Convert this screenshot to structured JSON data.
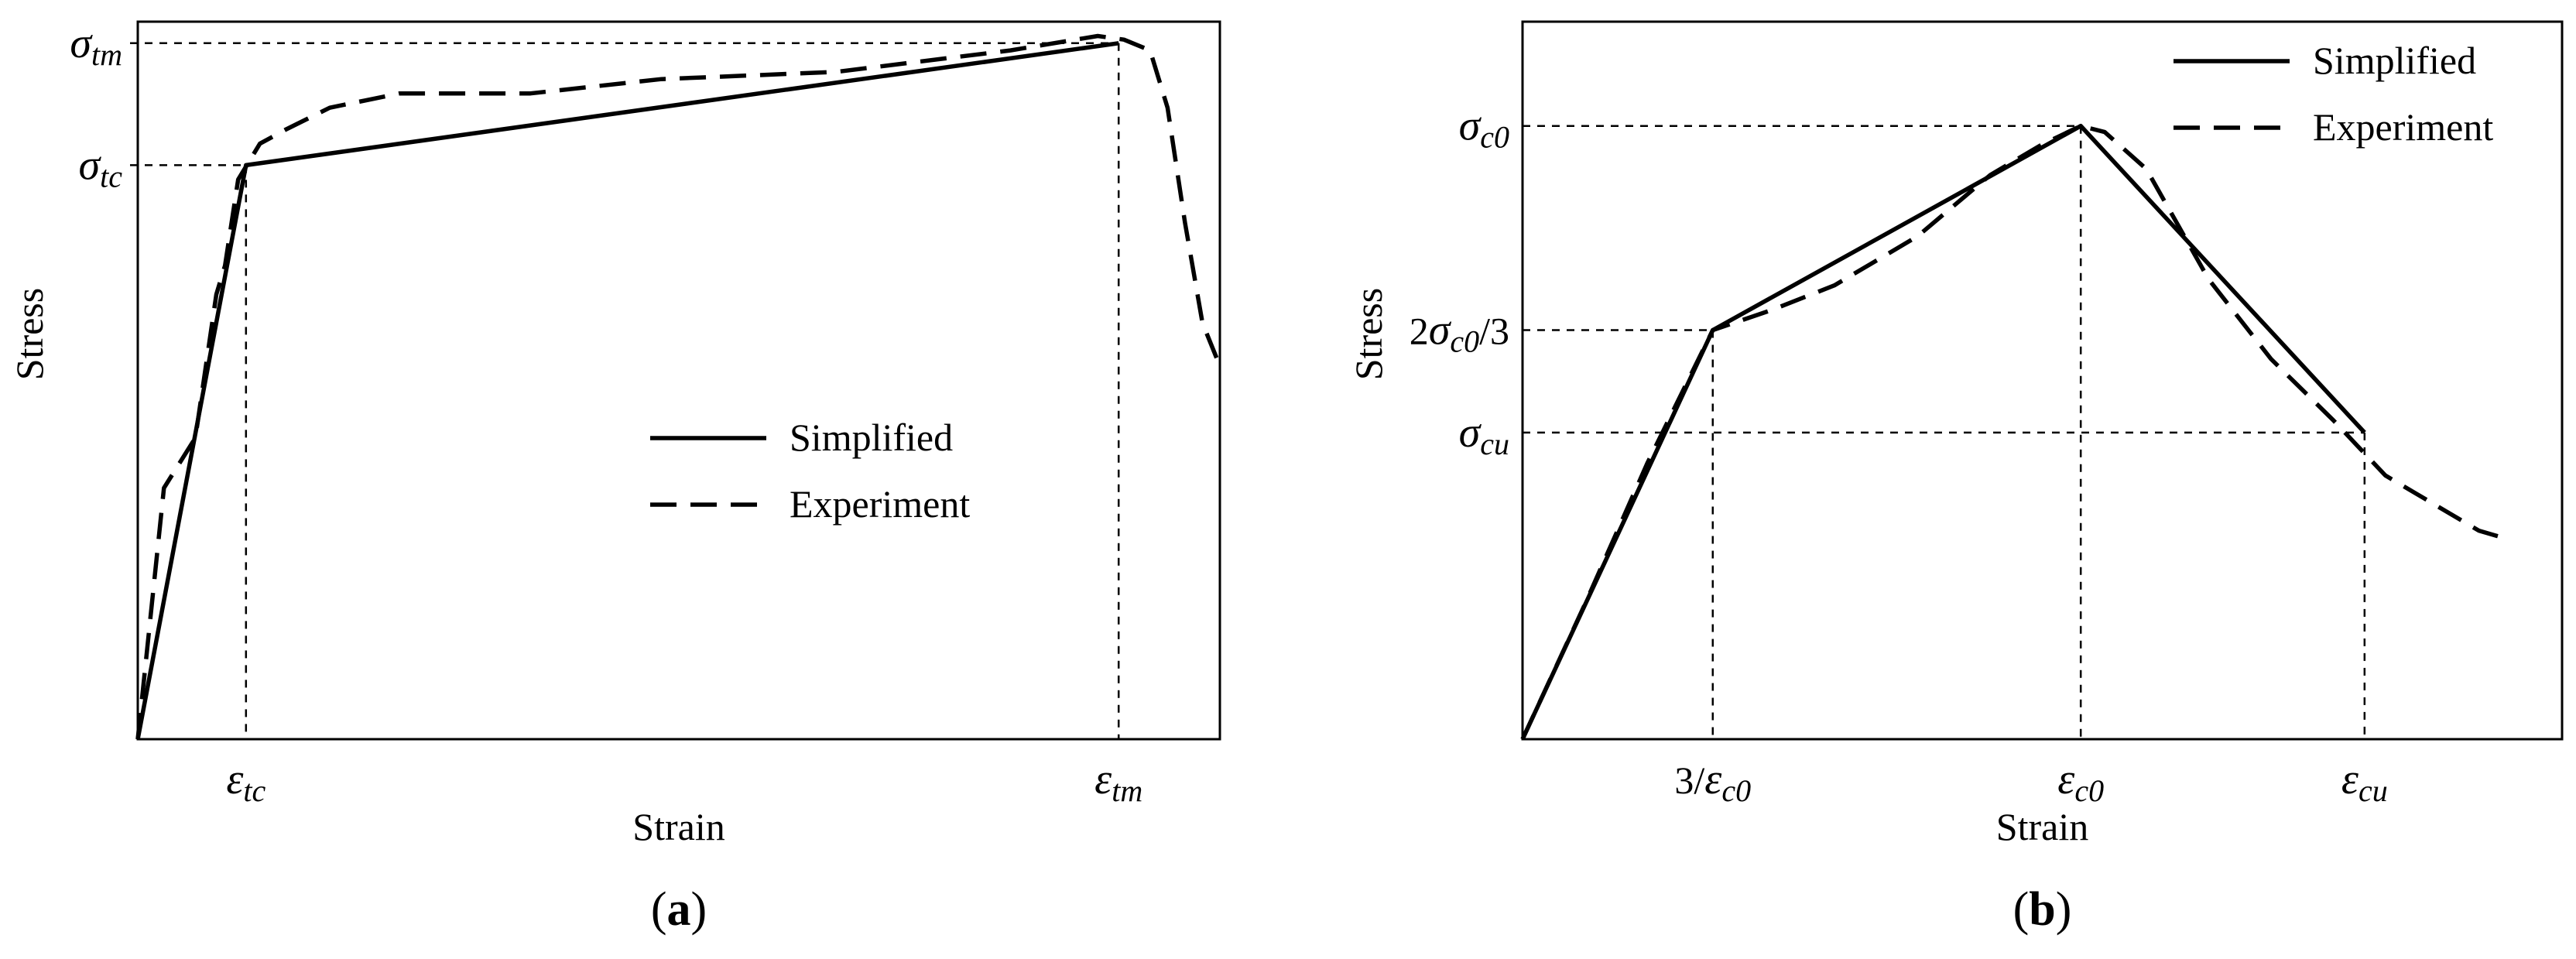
{
  "chart_data": [
    {
      "type": "line",
      "panel_label": {
        "open": "(",
        "letter": "a",
        "close": ")"
      },
      "xlabel": "Strain",
      "ylabel": "Stress",
      "xlim": [
        0,
        1.24
      ],
      "ylim": [
        0,
        1.0
      ],
      "legend_position": "center-right",
      "grid": false,
      "series": [
        {
          "name": "Simplified",
          "style": "solid",
          "color": "#000000",
          "x": [
            0,
            0.124,
            1.124
          ],
          "y": [
            0,
            0.8,
            0.97
          ]
        },
        {
          "name": "Experiment",
          "style": "dashed",
          "color": "#000000",
          "x": [
            0,
            0.03,
            0.066,
            0.09,
            0.1,
            0.115,
            0.14,
            0.17,
            0.22,
            0.3,
            0.45,
            0.6,
            0.8,
            1.0,
            1.1,
            1.13,
            1.16,
            1.18,
            1.2,
            1.22,
            1.24
          ],
          "y": [
            0,
            0.35,
            0.42,
            0.62,
            0.66,
            0.78,
            0.83,
            0.85,
            0.88,
            0.9,
            0.9,
            0.92,
            0.93,
            0.96,
            0.98,
            0.975,
            0.96,
            0.88,
            0.72,
            0.58,
            0.52
          ]
        }
      ],
      "x_ticks": [
        {
          "value": 0.124,
          "symbol": "ε",
          "sub": "tc"
        },
        {
          "value": 1.124,
          "symbol": "ε",
          "sub": "tm"
        }
      ],
      "y_ticks": [
        {
          "value": 0.8,
          "symbol": "σ",
          "sub": "tc"
        },
        {
          "value": 0.97,
          "symbol": "σ",
          "sub": "tm"
        }
      ]
    },
    {
      "type": "line",
      "panel_label": {
        "open": "(",
        "letter": "b",
        "close": ")"
      },
      "xlabel": "Strain",
      "ylabel": "Stress",
      "xlim": [
        0,
        1.0
      ],
      "ylim": [
        0,
        1.17
      ],
      "legend_position": "top-right",
      "grid": false,
      "series": [
        {
          "name": "Simplified",
          "style": "solid",
          "color": "#000000",
          "x": [
            0,
            0.183,
            0.537,
            0.81
          ],
          "y": [
            0,
            0.667,
            1.0,
            0.5
          ]
        },
        {
          "name": "Experiment",
          "style": "dashed",
          "color": "#000000",
          "x": [
            0,
            0.06,
            0.12,
            0.183,
            0.24,
            0.3,
            0.38,
            0.45,
            0.5,
            0.537,
            0.56,
            0.6,
            0.66,
            0.72,
            0.78,
            0.83,
            0.88,
            0.92,
            0.94
          ],
          "y": [
            0,
            0.22,
            0.45,
            0.667,
            0.7,
            0.74,
            0.82,
            0.92,
            0.97,
            1.0,
            0.99,
            0.93,
            0.75,
            0.62,
            0.52,
            0.43,
            0.38,
            0.34,
            0.33
          ]
        }
      ],
      "x_ticks": [
        {
          "value": 0.183,
          "prefix": "3/",
          "symbol": "ε",
          "sub": "c0"
        },
        {
          "value": 0.537,
          "symbol": "ε",
          "sub": "c0"
        },
        {
          "value": 0.81,
          "symbol": "ε",
          "sub": "cu"
        }
      ],
      "y_ticks": [
        {
          "value": 1.0,
          "symbol": "σ",
          "sub": "c0"
        },
        {
          "value": 0.667,
          "prefix": "2",
          "symbol": "σ",
          "sub": "c0",
          "suffix": "/3"
        },
        {
          "value": 0.5,
          "symbol": "σ",
          "sub": "cu"
        }
      ]
    }
  ]
}
